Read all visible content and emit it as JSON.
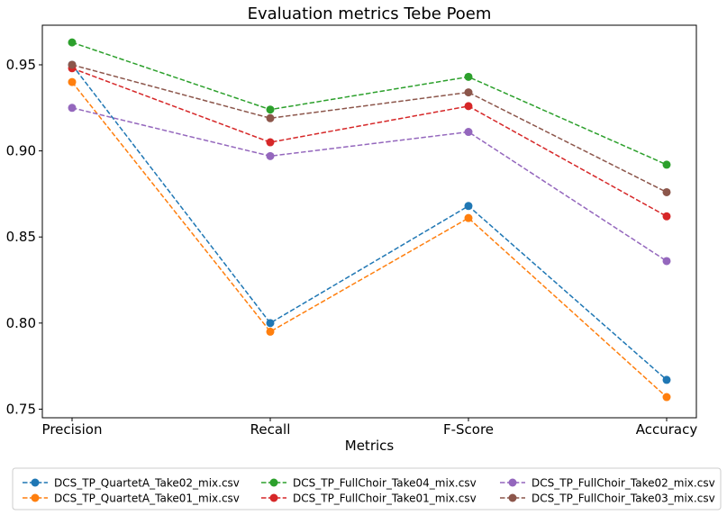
{
  "chart_data": {
    "type": "line",
    "title": "Evaluation metrics Tebe Poem",
    "xlabel": "Metrics",
    "ylabel": "",
    "categories": [
      "Precision",
      "Recall",
      "F-Score",
      "Accuracy"
    ],
    "ylim": [
      0.745,
      0.973
    ],
    "yticks": [
      "0.75",
      "0.80",
      "0.85",
      "0.90",
      "0.95"
    ],
    "grid": false,
    "legend_position": "bottom",
    "series": [
      {
        "name": "DCS_TP_QuartetA_Take02_mix.csv",
        "color": "#1f77b4",
        "values": [
          0.95,
          0.8,
          0.868,
          0.767
        ]
      },
      {
        "name": "DCS_TP_QuartetA_Take01_mix.csv",
        "color": "#ff7f0e",
        "values": [
          0.94,
          0.795,
          0.861,
          0.757
        ]
      },
      {
        "name": "DCS_TP_FullChoir_Take04_mix.csv",
        "color": "#2ca02c",
        "values": [
          0.963,
          0.924,
          0.943,
          0.892
        ]
      },
      {
        "name": "DCS_TP_FullChoir_Take01_mix.csv",
        "color": "#d62728",
        "values": [
          0.948,
          0.905,
          0.926,
          0.862
        ]
      },
      {
        "name": "DCS_TP_FullChoir_Take02_mix.csv",
        "color": "#9467bd",
        "values": [
          0.925,
          0.897,
          0.911,
          0.836
        ]
      },
      {
        "name": "DCS_TP_FullChoir_Take03_mix.csv",
        "color": "#8c564b",
        "values": [
          0.95,
          0.919,
          0.934,
          0.876
        ]
      }
    ]
  }
}
